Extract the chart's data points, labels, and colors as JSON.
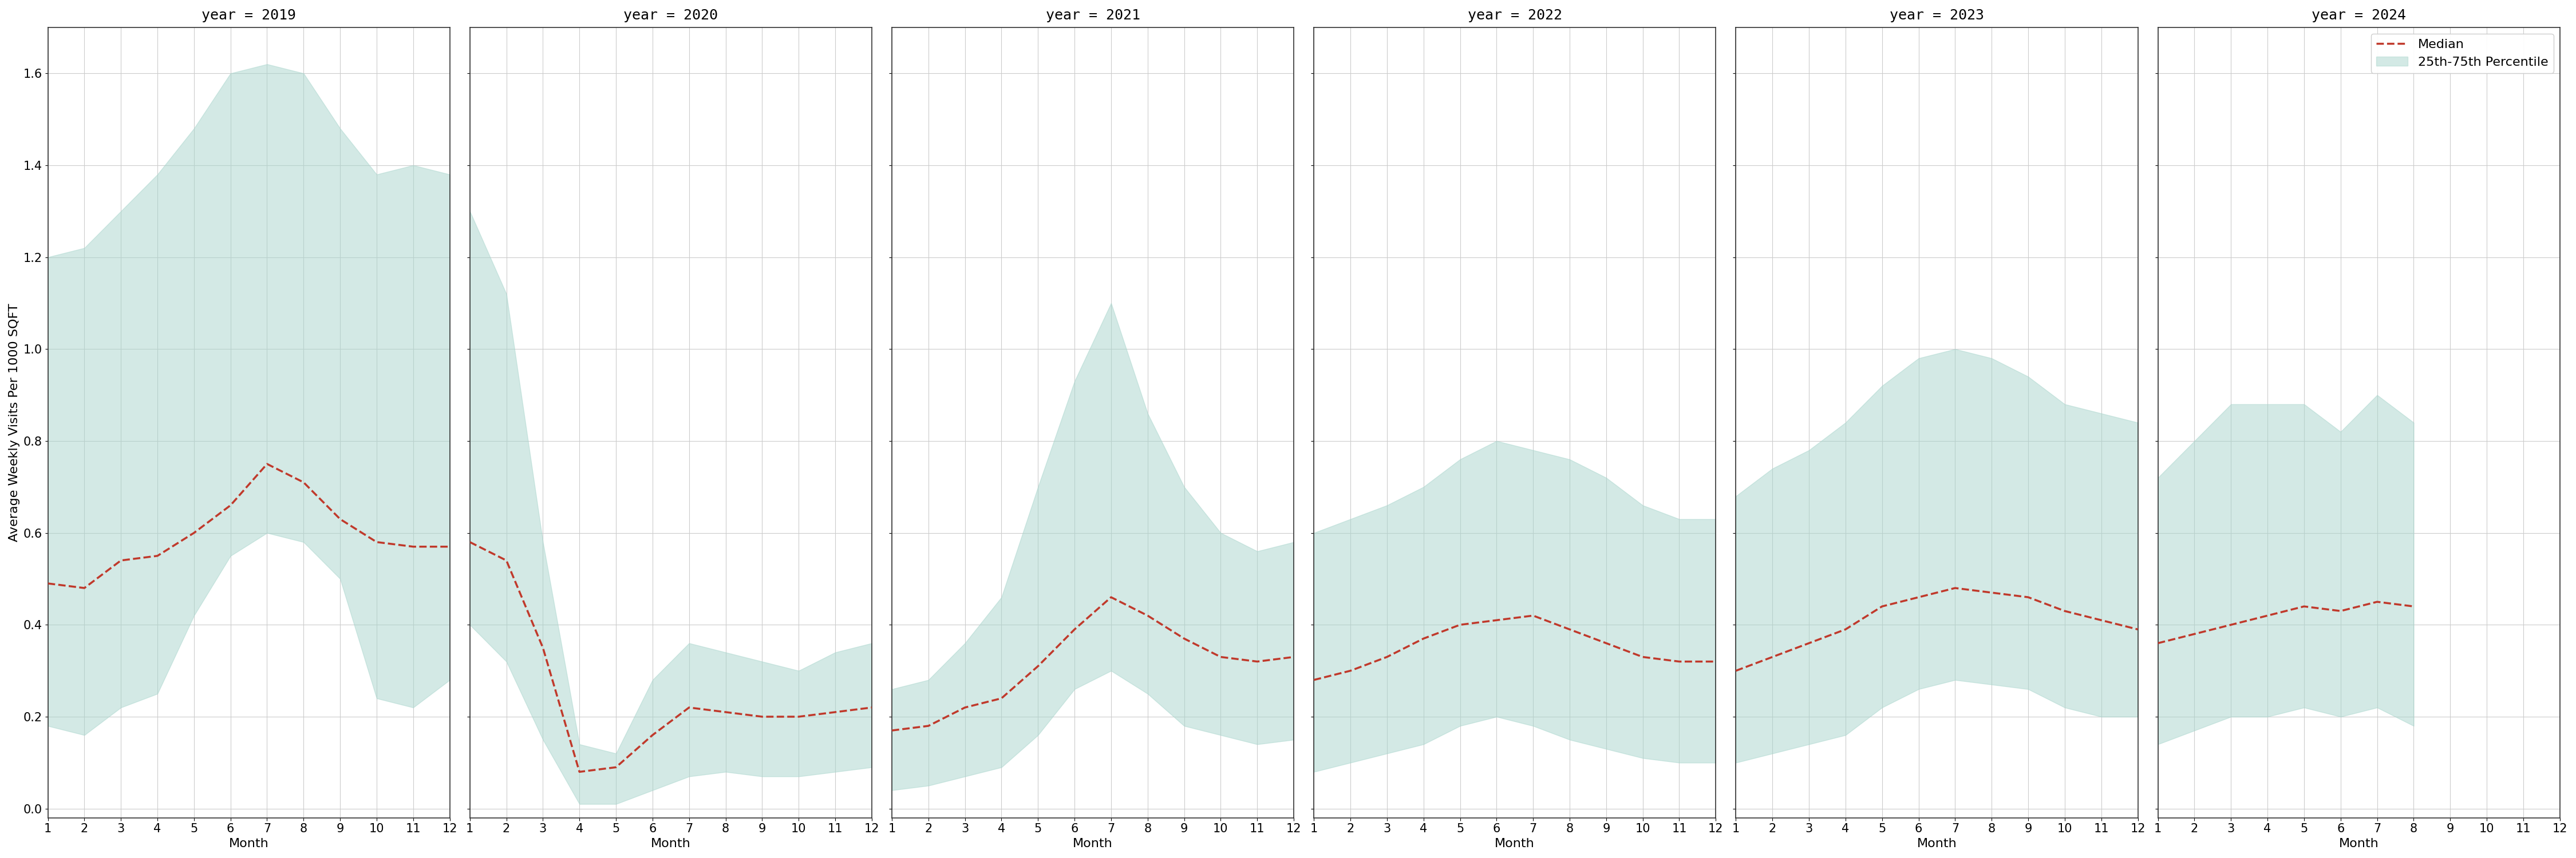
{
  "years": [
    2019,
    2020,
    2021,
    2022,
    2023,
    2024
  ],
  "months": [
    1,
    2,
    3,
    4,
    5,
    6,
    7,
    8,
    9,
    10,
    11,
    12
  ],
  "median": {
    "2019": [
      0.49,
      0.48,
      0.54,
      0.55,
      0.6,
      0.66,
      0.75,
      0.71,
      0.63,
      0.58,
      0.57,
      0.57
    ],
    "2020": [
      0.58,
      0.54,
      0.35,
      0.08,
      0.09,
      0.16,
      0.22,
      0.21,
      0.2,
      0.2,
      0.21,
      0.22
    ],
    "2021": [
      0.17,
      0.18,
      0.22,
      0.24,
      0.31,
      0.39,
      0.46,
      0.42,
      0.37,
      0.33,
      0.32,
      0.33
    ],
    "2022": [
      0.28,
      0.3,
      0.33,
      0.37,
      0.4,
      0.41,
      0.42,
      0.39,
      0.36,
      0.33,
      0.32,
      0.32
    ],
    "2023": [
      0.3,
      0.33,
      0.36,
      0.39,
      0.44,
      0.46,
      0.48,
      0.47,
      0.46,
      0.43,
      0.41,
      0.39
    ],
    "2024": [
      0.36,
      0.38,
      0.4,
      0.42,
      0.44,
      0.43,
      0.45,
      0.44,
      null,
      null,
      null,
      null
    ]
  },
  "p25": {
    "2019": [
      0.18,
      0.16,
      0.22,
      0.25,
      0.42,
      0.55,
      0.6,
      0.58,
      0.5,
      0.24,
      0.22,
      0.28
    ],
    "2020": [
      0.4,
      0.32,
      0.15,
      0.01,
      0.01,
      0.04,
      0.07,
      0.08,
      0.07,
      0.07,
      0.08,
      0.09
    ],
    "2021": [
      0.04,
      0.05,
      0.07,
      0.09,
      0.16,
      0.26,
      0.3,
      0.25,
      0.18,
      0.16,
      0.14,
      0.15
    ],
    "2022": [
      0.08,
      0.1,
      0.12,
      0.14,
      0.18,
      0.2,
      0.18,
      0.15,
      0.13,
      0.11,
      0.1,
      0.1
    ],
    "2023": [
      0.1,
      0.12,
      0.14,
      0.16,
      0.22,
      0.26,
      0.28,
      0.27,
      0.26,
      0.22,
      0.2,
      0.2
    ],
    "2024": [
      0.14,
      0.17,
      0.2,
      0.2,
      0.22,
      0.2,
      0.22,
      0.18,
      null,
      null,
      null,
      null
    ]
  },
  "p75": {
    "2019": [
      1.2,
      1.22,
      1.3,
      1.38,
      1.48,
      1.6,
      1.62,
      1.6,
      1.48,
      1.38,
      1.4,
      1.38
    ],
    "2020": [
      1.3,
      1.12,
      0.58,
      0.14,
      0.12,
      0.28,
      0.36,
      0.34,
      0.32,
      0.3,
      0.34,
      0.36
    ],
    "2021": [
      0.26,
      0.28,
      0.36,
      0.46,
      0.7,
      0.93,
      1.1,
      0.86,
      0.7,
      0.6,
      0.56,
      0.58
    ],
    "2022": [
      0.6,
      0.63,
      0.66,
      0.7,
      0.76,
      0.8,
      0.78,
      0.76,
      0.72,
      0.66,
      0.63,
      0.63
    ],
    "2023": [
      0.68,
      0.74,
      0.78,
      0.84,
      0.92,
      0.98,
      1.0,
      0.98,
      0.94,
      0.88,
      0.86,
      0.84
    ],
    "2024": [
      0.72,
      0.8,
      0.88,
      0.88,
      0.88,
      0.82,
      0.9,
      0.84,
      null,
      null,
      null,
      null
    ]
  },
  "ylabel": "Average Weekly Visits Per 1000 SQFT",
  "xlabel": "Month",
  "ylim": [
    -0.02,
    1.7
  ],
  "yticks": [
    0.0,
    0.2,
    0.4,
    0.6,
    0.8,
    1.0,
    1.2,
    1.4,
    1.6
  ],
  "fill_color": "#a8d5cc",
  "fill_alpha": 0.5,
  "line_color": "#c0392b",
  "line_style": "--",
  "line_width": 2.5,
  "background_color": "#ffffff",
  "grid_color": "#cccccc",
  "legend_median_label": "Median",
  "legend_fill_label": "25th-75th Percentile",
  "title_fontsize": 18,
  "label_fontsize": 16,
  "tick_fontsize": 15,
  "legend_fontsize": 16
}
